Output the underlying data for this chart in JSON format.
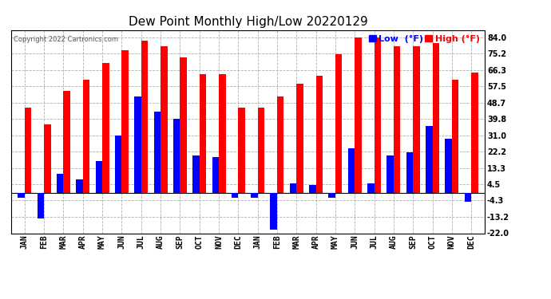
{
  "title": "Dew Point Monthly High/Low 20220129",
  "copyright": "Copyright 2022 Cartronics.com",
  "legend_low_label": "Low  (°F)",
  "legend_high_label": "High (°F)",
  "months": [
    "JAN",
    "FEB",
    "MAR",
    "APR",
    "MAY",
    "JUN",
    "JUL",
    "AUG",
    "SEP",
    "OCT",
    "NOV",
    "DEC",
    "JAN",
    "FEB",
    "MAR",
    "APR",
    "MAY",
    "JUN",
    "JUL",
    "AUG",
    "SEP",
    "OCT",
    "NOV",
    "DEC"
  ],
  "high_values": [
    46,
    37,
    55,
    61,
    70,
    77,
    82,
    79,
    73,
    64,
    64,
    46,
    46,
    52,
    59,
    63,
    75,
    84,
    84,
    79,
    79,
    81,
    61,
    65
  ],
  "low_values": [
    -3,
    -14,
    10,
    7,
    17,
    31,
    52,
    44,
    40,
    20,
    19,
    -3,
    -3,
    -20,
    5,
    4,
    -3,
    24,
    5,
    20,
    22,
    36,
    29,
    -5
  ],
  "ylim": [
    -22,
    88
  ],
  "yticks": [
    -22.0,
    -13.2,
    -4.3,
    4.5,
    13.3,
    22.2,
    31.0,
    39.8,
    48.7,
    57.5,
    66.3,
    75.2,
    84.0
  ],
  "bar_width": 0.35,
  "high_color": "#ff0000",
  "low_color": "#0000ff",
  "background_color": "#ffffff",
  "grid_color": "#b0b0b0",
  "title_fontsize": 11,
  "tick_fontsize": 7,
  "legend_fontsize": 8,
  "figwidth": 6.9,
  "figheight": 3.75,
  "dpi": 100
}
